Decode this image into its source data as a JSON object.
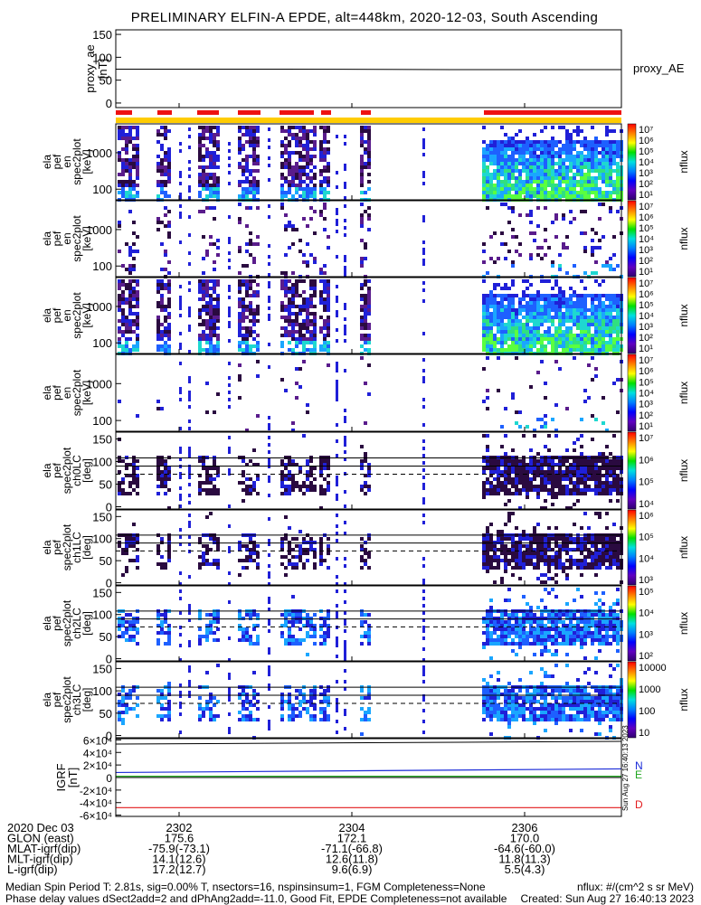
{
  "title": "PRELIMINARY ELFIN-A EPDE, alt=448km, 2020-12-03, South Ascending",
  "panels": [
    {
      "id": "proxy_ae",
      "ylabel": [
        "proxy_ae",
        "[nT]"
      ],
      "ticks": [
        "150",
        "100",
        "50",
        "0"
      ],
      "right_label": "proxy_AE"
    },
    {
      "id": "en",
      "ylabel": [
        "ela",
        "pef",
        "en",
        "spec2plot",
        "[keV]"
      ],
      "ticks": [
        "1000",
        "100"
      ],
      "cbar_label": "nflux"
    },
    {
      "id": "en_para",
      "ylabel": [
        "ela",
        "pef",
        "en",
        "spec2plot",
        "[keV]"
      ],
      "ticks": [
        "1000",
        "100"
      ],
      "cbar_label": "nflux"
    },
    {
      "id": "en_perp",
      "ylabel": [
        "ela",
        "pef",
        "en",
        "spec2plot",
        "[keV]"
      ],
      "ticks": [
        "1000",
        "100"
      ],
      "cbar_label": "nflux"
    },
    {
      "id": "en_anti",
      "ylabel": [
        "ela",
        "pef",
        "en",
        "spec2plot",
        "[keV]"
      ],
      "ticks": [
        "1000",
        "100"
      ],
      "cbar_label": "nflux"
    },
    {
      "id": "ch0LC",
      "ylabel": [
        "ela",
        "pef",
        "spec2plot",
        "ch0LC",
        "[deg]"
      ],
      "ticks": [
        "150",
        "100",
        "50",
        "0"
      ],
      "cbar_label": "nflux"
    },
    {
      "id": "ch1LC",
      "ylabel": [
        "ela",
        "pef",
        "spec2plot",
        "ch1LC",
        "[deg]"
      ],
      "ticks": [
        "150",
        "100",
        "50",
        "0"
      ],
      "cbar_label": "nflux"
    },
    {
      "id": "ch2LC",
      "ylabel": [
        "ela",
        "pef",
        "spec2plot",
        "ch2LC",
        "[deg]"
      ],
      "ticks": [
        "150",
        "100",
        "50",
        "0"
      ],
      "cbar_label": "nflux"
    },
    {
      "id": "ch3LC",
      "ylabel": [
        "ela",
        "pef",
        "spec2plot",
        "ch3LC",
        "[deg]"
      ],
      "ticks": [
        "150",
        "100",
        "50",
        "0"
      ],
      "cbar_label": "nflux"
    },
    {
      "id": "igrf",
      "ylabel": [
        "IGRF",
        "[nT]"
      ],
      "ticks": [
        "6×10⁴",
        "4×10⁴",
        "2×10⁴",
        "0",
        "-2×10⁴",
        "-4×10⁴",
        "-6×10⁴"
      ],
      "legend": [
        "N",
        "E",
        "D"
      ]
    }
  ],
  "colorbars": [
    {
      "labels": [
        "10⁷",
        "10⁶",
        "10⁵",
        "10⁴",
        "10³",
        "10²",
        "10¹"
      ]
    },
    {
      "labels": [
        "10⁷",
        "10⁶",
        "10⁵",
        "10⁴",
        "10³",
        "10²",
        "10¹"
      ]
    },
    {
      "labels": [
        "10⁷",
        "10⁶",
        "10⁵",
        "10⁴",
        "10³",
        "10²",
        "10¹"
      ]
    },
    {
      "labels": [
        "10⁷",
        "10⁶",
        "10⁵",
        "10⁴",
        "10³",
        "10²",
        "10¹"
      ]
    },
    {
      "labels": [
        "10⁷",
        "10⁶",
        "10⁵",
        "10⁴"
      ]
    },
    {
      "labels": [
        "10⁶",
        "10⁵",
        "10⁴",
        "10³"
      ]
    },
    {
      "labels": [
        "10⁵",
        "10⁴",
        "10³",
        "10²"
      ]
    },
    {
      "labels": [
        "10000",
        "1000",
        "100",
        "10"
      ]
    }
  ],
  "vertical_stamp": "Sun Aug 27 16:40:13 2023",
  "chart_data": {
    "type": "heatmap",
    "x_ticks": [
      "2302",
      "2304",
      "2306"
    ],
    "proxy_ae": {
      "values": [
        74,
        74,
        73,
        73
      ],
      "ylim": [
        -10,
        160
      ]
    },
    "flux_colors": [
      "#2a0a40",
      "#5a1c8c",
      "#2020d8",
      "#1e60ff",
      "#1aa6ff",
      "#1ed8d0",
      "#30e080",
      "#5aff40"
    ],
    "igrf": {
      "N": 8000,
      "E": 2000,
      "D": -48000,
      "ylim": [
        -62000,
        62000
      ]
    },
    "igrf_colors": {
      "N": "#1a2bd8",
      "E": "#1fa51f",
      "D": "#e31a1c"
    },
    "ephemeris_rows": [
      {
        "label": "2020 Dec 03",
        "values": [
          "2302",
          "2304",
          "2306"
        ]
      },
      {
        "label": "GLON (east)",
        "values": [
          "175.6",
          "172.1",
          "170.0"
        ]
      },
      {
        "label": "MLAT-igrf(dip)",
        "values": [
          "-75.9(-73.1)",
          "-71.1(-66.8)",
          "-64.6(-60.0)"
        ]
      },
      {
        "label": "MLT-igrf(dip)",
        "values": [
          "14.1(12.6)",
          "12.6(11.8)",
          "11.8(11.3)"
        ]
      },
      {
        "label": "L-igrf(dip)",
        "values": [
          "17.2(12.7)",
          "9.6(6.9)",
          "5.5(4.3)"
        ]
      }
    ]
  },
  "footer": {
    "line1_left": "Median Spin Period T: 2.81s, sig=0.00% T, nsectors=16, nspinsinsum=1, FGM Completeness=None",
    "line2_left": "Phase delay values dSect2add=2 and dPhAng2add=-11.0, Good Fit, EPDE Completeness=not available",
    "line1_right": "nflux: #/(cm^2 s sr MeV)",
    "line2_right": "Created: Sun Aug 27 16:40:13 2023"
  }
}
